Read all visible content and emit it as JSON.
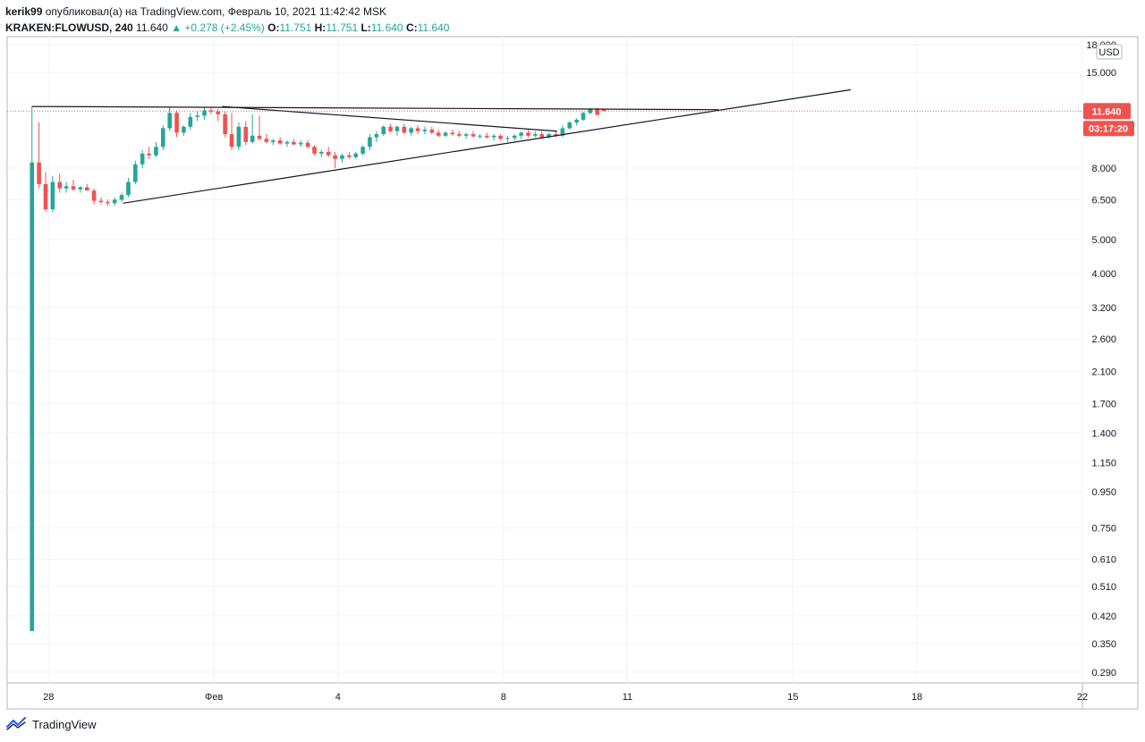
{
  "header": {
    "user": "kerik99",
    "published_text": "опубликовал(а) на TradingView.com, Февраль 10, 2021 11:42:42 MSK",
    "symbol": "KRAKEN:FLOWUSD, 240",
    "last": "11.640",
    "change": "▲ +0.278 (+2.45%)",
    "o_label": "O:",
    "o_val": "11.751",
    "h_label": "H:",
    "h_val": "11.751",
    "l_label": "L:",
    "l_val": "11.640",
    "c_label": "C:",
    "c_val": "11.640"
  },
  "footer": {
    "brand": "TradingView",
    "logo_icon": "tradingview-logo-icon"
  },
  "colors": {
    "up": "#26a69a",
    "down": "#ef5350",
    "grid": "#f0f3fa",
    "price_tag": "#ef5350",
    "line": "#131722"
  },
  "chart_data": {
    "type": "candlestick",
    "currency": "USD",
    "y_scale": "log",
    "ylim": [
      0.27,
      19.0
    ],
    "xlim": [
      27.0,
      53.0
    ],
    "y_ticks": [
      "18.000",
      "15.000",
      "8.000",
      "6.500",
      "5.000",
      "4.000",
      "3.200",
      "2.600",
      "2.100",
      "1.700",
      "1.400",
      "1.150",
      "0.950",
      "0.750",
      "0.610",
      "0.510",
      "0.420",
      "0.350",
      "0.290"
    ],
    "x_ticks": [
      {
        "x": 28,
        "label": "28"
      },
      {
        "x": 32,
        "label": "Фев"
      },
      {
        "x": 35,
        "label": "4"
      },
      {
        "x": 39,
        "label": "8"
      },
      {
        "x": 42,
        "label": "11"
      },
      {
        "x": 46,
        "label": "15"
      },
      {
        "x": 49,
        "label": "18"
      },
      {
        "x": 53,
        "label": "22"
      }
    ],
    "last_price": "11.640",
    "countdown": "03:17:20",
    "candles": [
      {
        "t": 27.6,
        "o": 0.38,
        "h": 12.0,
        "l": 0.38,
        "c": 8.3
      },
      {
        "t": 27.77,
        "o": 8.3,
        "h": 10.8,
        "l": 7.0,
        "c": 7.2
      },
      {
        "t": 27.93,
        "o": 7.2,
        "h": 7.8,
        "l": 6.0,
        "c": 6.1
      },
      {
        "t": 28.1,
        "o": 6.1,
        "h": 7.6,
        "l": 6.0,
        "c": 7.3
      },
      {
        "t": 28.27,
        "o": 7.3,
        "h": 7.7,
        "l": 6.8,
        "c": 7.0
      },
      {
        "t": 28.43,
        "o": 7.0,
        "h": 7.3,
        "l": 6.8,
        "c": 7.1
      },
      {
        "t": 28.6,
        "o": 7.1,
        "h": 7.4,
        "l": 6.9,
        "c": 6.95
      },
      {
        "t": 28.77,
        "o": 6.95,
        "h": 7.1,
        "l": 6.8,
        "c": 7.05
      },
      {
        "t": 28.93,
        "o": 7.05,
        "h": 7.2,
        "l": 6.9,
        "c": 6.9
      },
      {
        "t": 29.1,
        "o": 6.9,
        "h": 7.0,
        "l": 6.3,
        "c": 6.45
      },
      {
        "t": 29.27,
        "o": 6.45,
        "h": 6.6,
        "l": 6.3,
        "c": 6.4
      },
      {
        "t": 29.43,
        "o": 6.4,
        "h": 6.5,
        "l": 6.25,
        "c": 6.35
      },
      {
        "t": 29.6,
        "o": 6.35,
        "h": 6.6,
        "l": 6.25,
        "c": 6.5
      },
      {
        "t": 29.77,
        "o": 6.5,
        "h": 6.8,
        "l": 6.4,
        "c": 6.7
      },
      {
        "t": 29.93,
        "o": 6.7,
        "h": 7.5,
        "l": 6.6,
        "c": 7.3
      },
      {
        "t": 30.1,
        "o": 7.3,
        "h": 8.4,
        "l": 7.2,
        "c": 8.2
      },
      {
        "t": 30.27,
        "o": 8.2,
        "h": 9.0,
        "l": 8.0,
        "c": 8.8
      },
      {
        "t": 30.43,
        "o": 8.8,
        "h": 9.2,
        "l": 8.5,
        "c": 8.7
      },
      {
        "t": 30.6,
        "o": 8.7,
        "h": 9.5,
        "l": 8.6,
        "c": 9.2
      },
      {
        "t": 30.77,
        "o": 9.2,
        "h": 10.6,
        "l": 9.0,
        "c": 10.4
      },
      {
        "t": 30.93,
        "o": 10.4,
        "h": 11.9,
        "l": 10.2,
        "c": 11.5
      },
      {
        "t": 31.1,
        "o": 11.5,
        "h": 11.7,
        "l": 9.8,
        "c": 10.1
      },
      {
        "t": 31.27,
        "o": 10.1,
        "h": 10.6,
        "l": 9.9,
        "c": 10.5
      },
      {
        "t": 31.43,
        "o": 10.5,
        "h": 11.5,
        "l": 10.3,
        "c": 11.2
      },
      {
        "t": 31.6,
        "o": 11.2,
        "h": 11.6,
        "l": 10.9,
        "c": 11.3
      },
      {
        "t": 31.77,
        "o": 11.3,
        "h": 11.9,
        "l": 11.0,
        "c": 11.7
      },
      {
        "t": 31.93,
        "o": 11.7,
        "h": 11.9,
        "l": 11.4,
        "c": 11.6
      },
      {
        "t": 32.1,
        "o": 11.6,
        "h": 11.8,
        "l": 10.9,
        "c": 11.4
      },
      {
        "t": 32.27,
        "o": 11.4,
        "h": 11.6,
        "l": 9.8,
        "c": 10.0
      },
      {
        "t": 32.43,
        "o": 10.0,
        "h": 11.5,
        "l": 9.0,
        "c": 9.2
      },
      {
        "t": 32.6,
        "o": 9.2,
        "h": 10.8,
        "l": 9.0,
        "c": 10.5
      },
      {
        "t": 32.77,
        "o": 10.5,
        "h": 10.9,
        "l": 9.3,
        "c": 9.5
      },
      {
        "t": 32.93,
        "o": 9.5,
        "h": 11.4,
        "l": 9.4,
        "c": 9.9
      },
      {
        "t": 33.1,
        "o": 9.9,
        "h": 11.3,
        "l": 9.6,
        "c": 9.7
      },
      {
        "t": 33.27,
        "o": 9.7,
        "h": 10.0,
        "l": 9.4,
        "c": 9.5
      },
      {
        "t": 33.43,
        "o": 9.5,
        "h": 9.7,
        "l": 9.3,
        "c": 9.6
      },
      {
        "t": 33.6,
        "o": 9.6,
        "h": 9.8,
        "l": 9.3,
        "c": 9.4
      },
      {
        "t": 33.77,
        "o": 9.4,
        "h": 9.6,
        "l": 9.2,
        "c": 9.5
      },
      {
        "t": 33.93,
        "o": 9.5,
        "h": 9.7,
        "l": 9.3,
        "c": 9.35
      },
      {
        "t": 34.1,
        "o": 9.35,
        "h": 9.6,
        "l": 9.2,
        "c": 9.45
      },
      {
        "t": 34.27,
        "o": 9.45,
        "h": 9.6,
        "l": 9.1,
        "c": 9.2
      },
      {
        "t": 34.43,
        "o": 9.2,
        "h": 9.3,
        "l": 8.7,
        "c": 8.8
      },
      {
        "t": 34.6,
        "o": 8.8,
        "h": 9.0,
        "l": 8.6,
        "c": 8.9
      },
      {
        "t": 34.77,
        "o": 8.9,
        "h": 9.2,
        "l": 8.6,
        "c": 8.7
      },
      {
        "t": 34.93,
        "o": 8.7,
        "h": 8.9,
        "l": 8.0,
        "c": 8.5
      },
      {
        "t": 35.1,
        "o": 8.5,
        "h": 8.8,
        "l": 8.3,
        "c": 8.7
      },
      {
        "t": 35.27,
        "o": 8.7,
        "h": 8.9,
        "l": 8.5,
        "c": 8.6
      },
      {
        "t": 35.43,
        "o": 8.6,
        "h": 8.9,
        "l": 8.5,
        "c": 8.8
      },
      {
        "t": 35.6,
        "o": 8.8,
        "h": 9.3,
        "l": 8.7,
        "c": 9.2
      },
      {
        "t": 35.77,
        "o": 9.2,
        "h": 10.0,
        "l": 9.0,
        "c": 9.8
      },
      {
        "t": 35.93,
        "o": 9.8,
        "h": 10.2,
        "l": 9.5,
        "c": 10.0
      },
      {
        "t": 36.1,
        "o": 10.0,
        "h": 10.6,
        "l": 9.9,
        "c": 10.5
      },
      {
        "t": 36.27,
        "o": 10.5,
        "h": 10.7,
        "l": 10.1,
        "c": 10.2
      },
      {
        "t": 36.43,
        "o": 10.2,
        "h": 10.6,
        "l": 9.9,
        "c": 10.5
      },
      {
        "t": 36.6,
        "o": 10.5,
        "h": 10.7,
        "l": 10.0,
        "c": 10.1
      },
      {
        "t": 36.77,
        "o": 10.1,
        "h": 10.5,
        "l": 9.9,
        "c": 10.4
      },
      {
        "t": 36.93,
        "o": 10.4,
        "h": 10.6,
        "l": 10.0,
        "c": 10.2
      },
      {
        "t": 37.1,
        "o": 10.2,
        "h": 10.5,
        "l": 10.0,
        "c": 10.3
      },
      {
        "t": 37.27,
        "o": 10.3,
        "h": 10.5,
        "l": 10.0,
        "c": 10.1
      },
      {
        "t": 37.43,
        "o": 10.1,
        "h": 10.3,
        "l": 9.8,
        "c": 9.9
      },
      {
        "t": 37.6,
        "o": 9.9,
        "h": 10.2,
        "l": 9.8,
        "c": 10.1
      },
      {
        "t": 37.77,
        "o": 10.1,
        "h": 10.3,
        "l": 9.9,
        "c": 10.0
      },
      {
        "t": 37.93,
        "o": 10.0,
        "h": 10.2,
        "l": 9.8,
        "c": 9.9
      },
      {
        "t": 38.1,
        "o": 9.9,
        "h": 10.1,
        "l": 9.7,
        "c": 10.0
      },
      {
        "t": 38.27,
        "o": 10.0,
        "h": 10.2,
        "l": 9.8,
        "c": 9.85
      },
      {
        "t": 38.43,
        "o": 9.85,
        "h": 10.0,
        "l": 9.7,
        "c": 9.9
      },
      {
        "t": 38.6,
        "o": 9.9,
        "h": 10.1,
        "l": 9.7,
        "c": 9.8
      },
      {
        "t": 38.77,
        "o": 9.8,
        "h": 10.0,
        "l": 9.6,
        "c": 9.9
      },
      {
        "t": 38.93,
        "o": 9.9,
        "h": 10.0,
        "l": 9.6,
        "c": 9.7
      },
      {
        "t": 39.1,
        "o": 9.7,
        "h": 9.9,
        "l": 9.5,
        "c": 9.75
      },
      {
        "t": 39.27,
        "o": 9.75,
        "h": 10.0,
        "l": 9.6,
        "c": 9.9
      },
      {
        "t": 39.43,
        "o": 9.9,
        "h": 10.2,
        "l": 9.7,
        "c": 10.1
      },
      {
        "t": 39.6,
        "o": 10.1,
        "h": 10.3,
        "l": 9.8,
        "c": 9.9
      },
      {
        "t": 39.77,
        "o": 9.9,
        "h": 10.2,
        "l": 9.8,
        "c": 10.0
      },
      {
        "t": 39.93,
        "o": 10.0,
        "h": 10.2,
        "l": 9.7,
        "c": 9.8
      },
      {
        "t": 40.1,
        "o": 9.8,
        "h": 10.1,
        "l": 9.7,
        "c": 10.0
      },
      {
        "t": 40.27,
        "o": 10.0,
        "h": 10.2,
        "l": 9.8,
        "c": 9.9
      },
      {
        "t": 40.43,
        "o": 9.9,
        "h": 10.6,
        "l": 9.8,
        "c": 10.4
      },
      {
        "t": 40.6,
        "o": 10.4,
        "h": 10.9,
        "l": 10.3,
        "c": 10.8
      },
      {
        "t": 40.77,
        "o": 10.8,
        "h": 11.1,
        "l": 10.6,
        "c": 11.0
      },
      {
        "t": 40.93,
        "o": 11.0,
        "h": 11.6,
        "l": 10.9,
        "c": 11.5
      },
      {
        "t": 41.1,
        "o": 11.5,
        "h": 11.9,
        "l": 11.4,
        "c": 11.8
      },
      {
        "t": 41.27,
        "o": 11.8,
        "h": 11.9,
        "l": 11.3,
        "c": 11.362
      },
      {
        "t": 41.43,
        "o": 11.751,
        "h": 11.751,
        "l": 11.64,
        "c": 11.64
      }
    ],
    "drawings": [
      {
        "name": "resistance-line",
        "x1": 27.6,
        "y1": 12.0,
        "x2": 44.2,
        "y2": 11.75
      },
      {
        "name": "descending-line",
        "x1": 32.2,
        "y1": 12.0,
        "x2": 40.3,
        "y2": 10.2
      },
      {
        "name": "ascending-line",
        "x1": 29.8,
        "y1": 6.35,
        "x2": 47.4,
        "y2": 13.4
      }
    ]
  }
}
